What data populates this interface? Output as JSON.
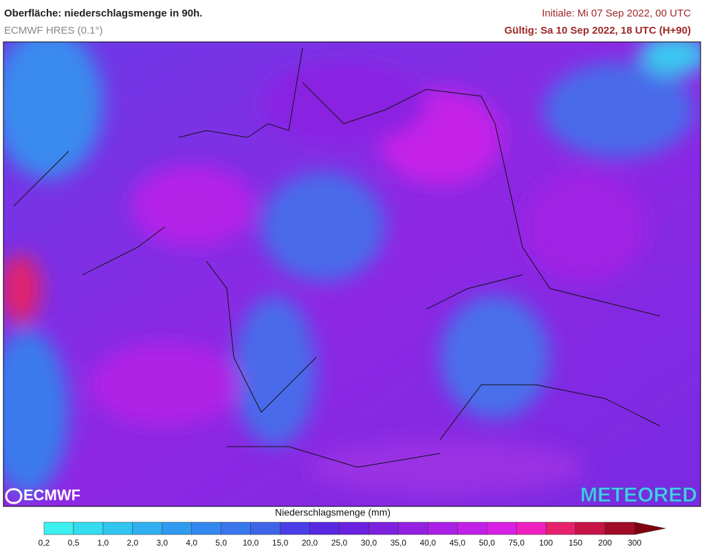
{
  "header": {
    "title": "Oberfläche: niederschlagsmenge in 90h.",
    "model": "ECMWF HRES (0.1°)",
    "initial": "Initiale: Mi 07 Sep 2022, 00 UTC",
    "valid": "Gültig: Sa 10 Sep 2022, 18 UTC (H+90)"
  },
  "logos": {
    "left": "ECMWF",
    "right": "METEORED"
  },
  "legend": {
    "title": "Niederschlagsmenge (mm)",
    "ticks": [
      "0,2",
      "0,5",
      "1,0",
      "2,0",
      "3,0",
      "4,0",
      "5,0",
      "10,0",
      "15,0",
      "20,0",
      "25,0",
      "30,0",
      "35,0",
      "40,0",
      "45,0",
      "50,0",
      "75,0",
      "100",
      "150",
      "200",
      "300"
    ],
    "colors": [
      "#3cf0f0",
      "#34dcf0",
      "#30c6f0",
      "#30b0f0",
      "#309af0",
      "#3288ee",
      "#3876ec",
      "#3e64ea",
      "#4a3ee8",
      "#5828e2",
      "#6a22e0",
      "#7e20e0",
      "#9420e2",
      "#aa20e6",
      "#c020e8",
      "#d820e4",
      "#f020c0",
      "#e8206c",
      "#c81448",
      "#a00c28"
    ],
    "over_color": "#800010"
  }
}
